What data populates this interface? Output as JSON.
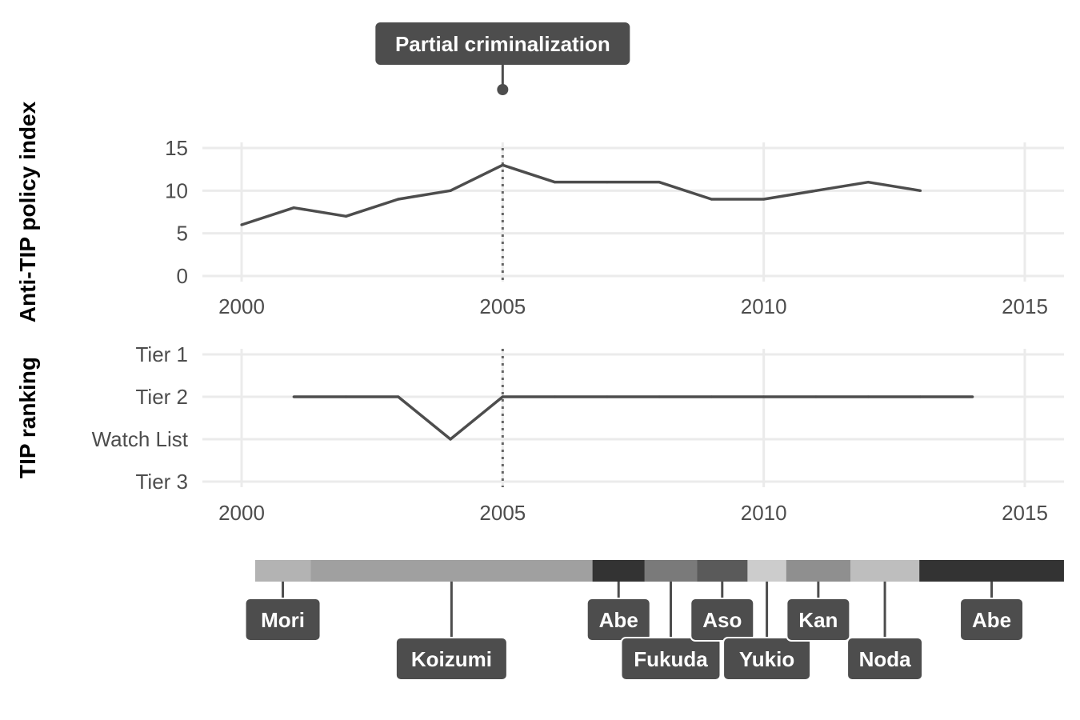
{
  "chart_data": [
    {
      "type": "line",
      "ylabel": "Anti-TIP policy index",
      "x": [
        2000,
        2001,
        2002,
        2003,
        2004,
        2005,
        2006,
        2007,
        2008,
        2009,
        2010,
        2011,
        2012,
        2013
      ],
      "values": [
        6,
        8,
        7,
        9,
        10,
        13,
        11,
        11,
        11,
        9,
        9,
        10,
        11,
        10
      ],
      "xticks": [
        "2000",
        "2005",
        "2010",
        "2015"
      ],
      "yticks": [
        "0",
        "5",
        "10",
        "15"
      ],
      "xlim": [
        2000,
        2015
      ],
      "ylim": [
        0,
        15
      ],
      "grid": true,
      "vline": {
        "x": 2005,
        "label": "Partial criminalization"
      }
    },
    {
      "type": "line",
      "ylabel": "TIP ranking",
      "x": [
        2001,
        2002,
        2003,
        2004,
        2005,
        2006,
        2007,
        2008,
        2009,
        2010,
        2011,
        2012,
        2013,
        2014
      ],
      "categories": [
        "Tier 3",
        "Watch List",
        "Tier 2",
        "Tier 1"
      ],
      "values": [
        "Tier 2",
        "Tier 2",
        "Tier 2",
        "Watch List",
        "Tier 2",
        "Tier 2",
        "Tier 2",
        "Tier 2",
        "Tier 2",
        "Tier 2",
        "Tier 2",
        "Tier 2",
        "Tier 2",
        "Tier 2"
      ],
      "xticks": [
        "2000",
        "2005",
        "2010",
        "2015"
      ],
      "xlim": [
        2000,
        2015
      ],
      "grid": true,
      "vline": {
        "x": 2005
      }
    },
    {
      "type": "timeline",
      "segments": [
        {
          "name": "Mori",
          "start": 2000.26,
          "end": 2001.32,
          "color": "#b3b3b3",
          "row": 0
        },
        {
          "name": "Koizumi",
          "start": 2001.32,
          "end": 2006.72,
          "color": "#a0a0a0",
          "row": 1
        },
        {
          "name": "Abe",
          "start": 2006.72,
          "end": 2007.72,
          "color": "#333333",
          "row": 0
        },
        {
          "name": "Fukuda",
          "start": 2007.72,
          "end": 2008.72,
          "color": "#7a7a7a",
          "row": 1
        },
        {
          "name": "Aso",
          "start": 2008.72,
          "end": 2009.69,
          "color": "#5a5a5a",
          "row": 0
        },
        {
          "name": "Yukio",
          "start": 2009.69,
          "end": 2010.43,
          "color": "#cccccc",
          "row": 1
        },
        {
          "name": "Kan",
          "start": 2010.43,
          "end": 2011.66,
          "color": "#8f8f8f",
          "row": 0
        },
        {
          "name": "Noda",
          "start": 2011.66,
          "end": 2012.98,
          "color": "#bebebe",
          "row": 1
        },
        {
          "name": "Abe",
          "start": 2012.98,
          "end": 2015.75,
          "color": "#333333",
          "row": 0
        }
      ]
    }
  ]
}
